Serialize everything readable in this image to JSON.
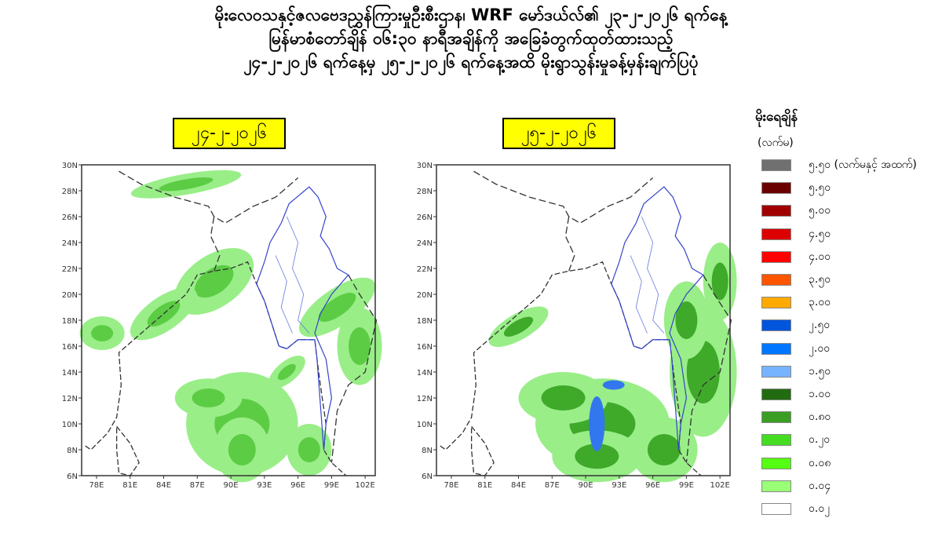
{
  "title": {
    "line1": "မိုးလေဝသနှင့်ဇလဗေဒညွှန်ကြားမှုဦးစီးဌာန၊ WRF မော်ဒယ်လ်၏ ၂၃-၂-၂၀၂၆ ရက်နေ့",
    "line2": "မြန်မာစံတော်ချိန် ၀၆:၃၀ နာရီအချိန်ကို အခြေခံတွက်ထုတ်ထားသည့်",
    "line3": "၂၄-၂-၂၀၂၆ ရက်နေ့မှ ၂၅-၂-၂၀၂၆ ရက်နေ့အထိ မိုးရွာသွန်းမှုခန့်မှန်းချက်ပြပုံ"
  },
  "maps": [
    {
      "date": "၂၄-၂-၂၀၂၆"
    },
    {
      "date": "၂၅-၂-၂၀၂၆"
    }
  ],
  "axes": {
    "lon_ticks": [
      "78E",
      "81E",
      "84E",
      "87E",
      "90E",
      "93E",
      "96E",
      "99E",
      "102E"
    ],
    "lat_ticks": [
      "6N",
      "8N",
      "10N",
      "12N",
      "14N",
      "16N",
      "18N",
      "20N",
      "22N",
      "24N",
      "26N",
      "28N",
      "30N"
    ]
  },
  "legend": {
    "title": "မိုးရေချိန်",
    "unit": "(လက်မ)",
    "items": [
      {
        "label": "၅.၅၀ (လက်မနှင့် အထက်)",
        "color": "#707070"
      },
      {
        "label": "၅.၅၀",
        "color": "#6b0000"
      },
      {
        "label": "၅.၀၀",
        "color": "#a00000"
      },
      {
        "label": "၄.၅၀",
        "color": "#dd0000"
      },
      {
        "label": "၄.၀၀",
        "color": "#ff0000"
      },
      {
        "label": "၃.၅၀",
        "color": "#ff5500"
      },
      {
        "label": "၃.၀၀",
        "color": "#ffaa00"
      },
      {
        "label": "၂.၅၀",
        "color": "#0055dd"
      },
      {
        "label": "၂.၀၀",
        "color": "#0077ff"
      },
      {
        "label": "၁.၅၀",
        "color": "#77b4ff"
      },
      {
        "label": "၁.၀၀",
        "color": "#226b11"
      },
      {
        "label": "၀.၈၀",
        "color": "#3a9e22"
      },
      {
        "label": "၀.၂၀",
        "color": "#44dd22"
      },
      {
        "label": "၀.၀၈",
        "color": "#55ff11"
      },
      {
        "label": "၀.၀၄",
        "color": "#99ff77"
      },
      {
        "label": "၀.၀၂",
        "color": "#ffffff"
      }
    ]
  }
}
